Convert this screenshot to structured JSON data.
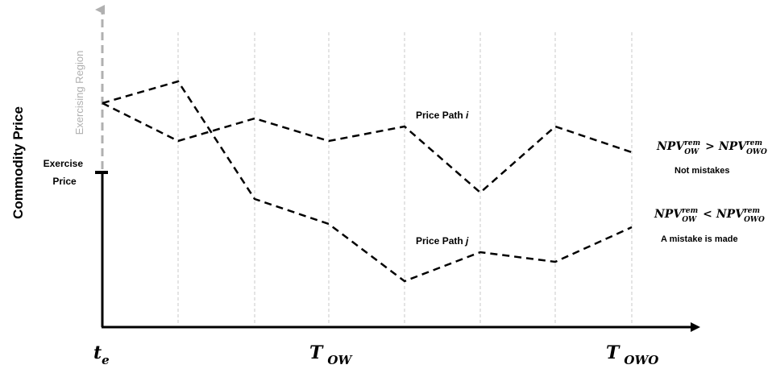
{
  "y_axis_label": "Commodity Price",
  "exercising_region_label": "Exercising Region",
  "exercise_price_label": {
    "line1": "Exercise",
    "line2": "Price"
  },
  "x_axis_labels": {
    "t_e": {
      "main": "t",
      "sub": "e"
    },
    "t_ow": {
      "main": "T",
      "sub": "OW"
    },
    "t_owo": {
      "main": "T",
      "sub": "OWO"
    }
  },
  "price_path_i_label": {
    "text": "Price Path ",
    "var": "i"
  },
  "price_path_j_label": {
    "text": "Price Path ",
    "var": "j"
  },
  "condition_i": {
    "left": "NPV",
    "left_sub": "OW",
    "left_sup": "rem",
    "op": ">",
    "right": "NPV",
    "right_sub": "OWO",
    "right_sup": "rem",
    "caption": "Not mistakes"
  },
  "condition_j": {
    "left": "NPV",
    "left_sub": "OW",
    "left_sup": "rem",
    "op": "<",
    "right": "NPV",
    "right_sub": "OWO",
    "right_sup": "rem",
    "caption": "A mistake is made"
  },
  "colors": {
    "axis": "#000000",
    "exercising_region": "#b0b0b0",
    "grid": "#c8c8c8",
    "path": "#000000"
  }
}
